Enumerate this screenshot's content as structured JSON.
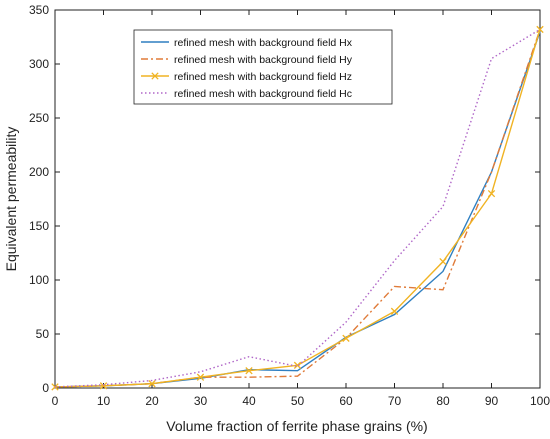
{
  "chart_data": {
    "type": "line",
    "xlabel": "Volume fraction of ferrite phase grains (%)",
    "ylabel": "Equivalent permeability",
    "xlim": [
      0,
      100
    ],
    "ylim": [
      0,
      350
    ],
    "xticks": [
      0,
      10,
      20,
      30,
      40,
      50,
      60,
      70,
      80,
      90,
      100
    ],
    "yticks": [
      0,
      50,
      100,
      150,
      200,
      250,
      300,
      350
    ],
    "grid": false,
    "legend_position": "top-left",
    "x": [
      0,
      10,
      20,
      30,
      40,
      50,
      60,
      70,
      80,
      90,
      100
    ],
    "series": [
      {
        "name": "refined mesh with background field Hx",
        "color": "#2f7fc1",
        "dash": "solid",
        "marker": "none",
        "values": [
          1,
          2,
          4,
          9,
          17,
          16,
          47,
          68,
          108,
          200,
          330
        ]
      },
      {
        "name": "refined mesh with background field Hy",
        "color": "#e07b39",
        "dash": "dashdot",
        "marker": "none",
        "values": [
          1,
          2,
          4,
          10,
          10,
          11,
          46,
          94,
          91,
          200,
          332
        ]
      },
      {
        "name": "refined mesh with background field Hz",
        "color": "#f0b323",
        "dash": "solid",
        "marker": "x",
        "values": [
          1,
          2,
          4,
          10,
          16,
          21,
          46,
          71,
          117,
          180,
          332
        ]
      },
      {
        "name": "refined mesh with background field Hc",
        "color": "#b067c8",
        "dash": "dotted",
        "marker": "none",
        "values": [
          1,
          3,
          7,
          15,
          29,
          20,
          61,
          118,
          168,
          305,
          332
        ]
      }
    ]
  }
}
